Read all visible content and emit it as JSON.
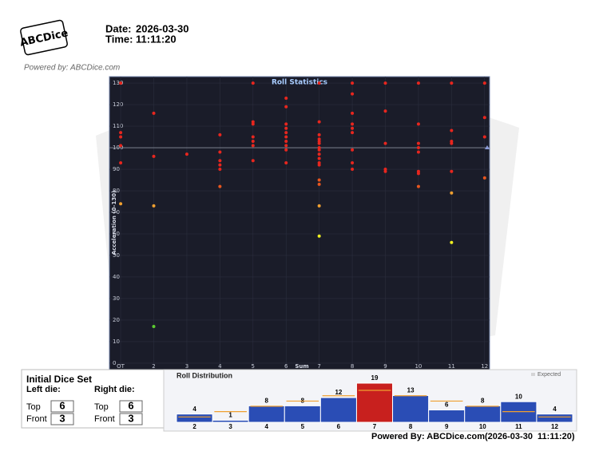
{
  "header": {
    "logo": "ABCDice",
    "date_label": "Date:",
    "date": "2026-03-30",
    "time_label": "Time:",
    "time": "11:11:20",
    "powered": "Powered by: ABCDice.com"
  },
  "chart_data": [
    {
      "type": "scatter",
      "title": "Roll Statistics",
      "x_label": "Sum",
      "y_label": "Acceleration (0-130)",
      "xlim": [
        0.66,
        12.15
      ],
      "ylim": [
        -3,
        133
      ],
      "xticks": [
        {
          "value": 1,
          "label": "OT"
        },
        2,
        3,
        4,
        5,
        6,
        7,
        8,
        9,
        10,
        11,
        12
      ],
      "yticks": [
        0,
        10,
        20,
        30,
        40,
        50,
        60,
        70,
        80,
        90,
        100,
        110,
        120,
        130
      ],
      "grid": true,
      "ref_line": 100,
      "series": [
        {
          "color": "#e8261e",
          "x": [
            1,
            1,
            1,
            1,
            1,
            2,
            2,
            3,
            4,
            4,
            4,
            4,
            4,
            5,
            5,
            5,
            5,
            5,
            5,
            5,
            6,
            6,
            6,
            6,
            6,
            6,
            6,
            6,
            6,
            6,
            7,
            7,
            7,
            7,
            7,
            7,
            7,
            7,
            7,
            7,
            7,
            7,
            8,
            8,
            8,
            8,
            8,
            8,
            8,
            8,
            8,
            9,
            9,
            9,
            9,
            9,
            10,
            10,
            10,
            10,
            10,
            10,
            10,
            11,
            11,
            11,
            11,
            11,
            12,
            12,
            12
          ],
          "y": [
            130,
            107,
            105,
            101,
            93,
            116,
            96,
            97,
            106,
            98,
            94,
            92,
            90,
            130,
            112,
            111,
            105,
            103,
            101,
            94,
            123,
            119,
            111,
            109,
            107,
            105,
            103,
            101,
            99,
            93,
            130,
            112,
            106,
            104,
            103,
            102,
            100,
            99,
            97,
            95,
            93,
            92,
            130,
            125,
            116,
            111,
            109,
            107,
            99,
            93,
            90,
            130,
            117,
            102,
            90,
            89,
            130,
            111,
            102,
            100,
            98,
            89,
            88,
            130,
            108,
            103,
            102,
            89,
            130,
            114,
            105
          ]
        },
        {
          "color": "#e8561e",
          "x": [
            4,
            7,
            7,
            10,
            12
          ],
          "y": [
            82,
            85,
            83,
            82,
            86
          ]
        },
        {
          "color": "#f0a030",
          "x": [
            1,
            2,
            7,
            11
          ],
          "y": [
            74,
            73,
            73,
            79
          ]
        },
        {
          "color": "#f0f020",
          "x": [
            7,
            11
          ],
          "y": [
            59,
            56
          ]
        },
        {
          "color": "#5ccc30",
          "x": [
            2
          ],
          "y": [
            17
          ]
        }
      ]
    },
    {
      "type": "bar",
      "title": "Roll Distribution",
      "categories": [
        "2",
        "3",
        "4",
        "5",
        "6",
        "7",
        "8",
        "9",
        "10",
        "11",
        "12"
      ],
      "ylim": [
        0,
        19
      ],
      "series": [
        {
          "values": [
            4,
            1,
            8,
            8,
            12,
            19,
            13,
            6,
            8,
            10,
            4
          ],
          "colors": [
            "#2a4db5",
            "#2a4db5",
            "#2a4db5",
            "#2a4db5",
            "#2a4db5",
            "#c8201e",
            "#2a4db5",
            "#2a4db5",
            "#2a4db5",
            "#2a4db5",
            "#2a4db5"
          ]
        },
        {
          "name": "Expected",
          "color": "#f0a030",
          "values": [
            2.6,
            5.2,
            7.8,
            10.3,
            12.9,
            15.5,
            12.9,
            10.3,
            7.8,
            5.2,
            2.6
          ]
        }
      ]
    }
  ],
  "dice_set": {
    "title": "Initial Dice Set",
    "left": {
      "label": "Left die:",
      "top_label": "Top",
      "top": 6,
      "front_label": "Front",
      "front": 3
    },
    "right": {
      "label": "Right die:",
      "top_label": "Top",
      "top": 6,
      "front_label": "Front",
      "front": 3
    }
  },
  "footer": {
    "powered": "Powered By: ABCDice.com",
    "stamp": "(2026-03-30  11:11:20)"
  }
}
